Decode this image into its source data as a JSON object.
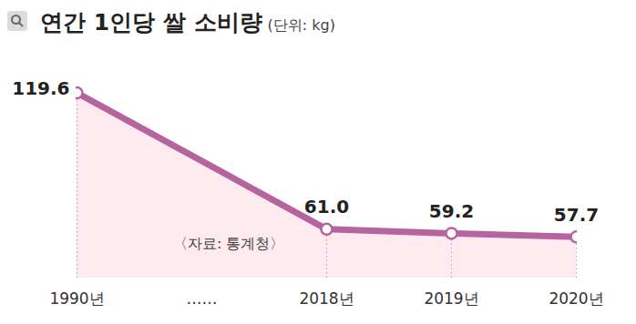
{
  "chart_data": {
    "type": "line",
    "title": "연간 1인당 쌀 소비량",
    "subtitle": "(단위: kg)",
    "annotation": "〈자료: 통계청〉",
    "categories": [
      "1990년",
      "……",
      "2018년",
      "2019년",
      "2020년"
    ],
    "values": [
      119.6,
      null,
      61.0,
      59.2,
      57.7
    ],
    "value_labels": [
      "119.6",
      null,
      "61.0",
      "59.2",
      "57.7"
    ],
    "color": "#b5649f",
    "marker": "circle",
    "data_labels": true,
    "grid": false,
    "tick_labels": "x",
    "ylim": [
      40,
      130
    ],
    "yticks": []
  }
}
